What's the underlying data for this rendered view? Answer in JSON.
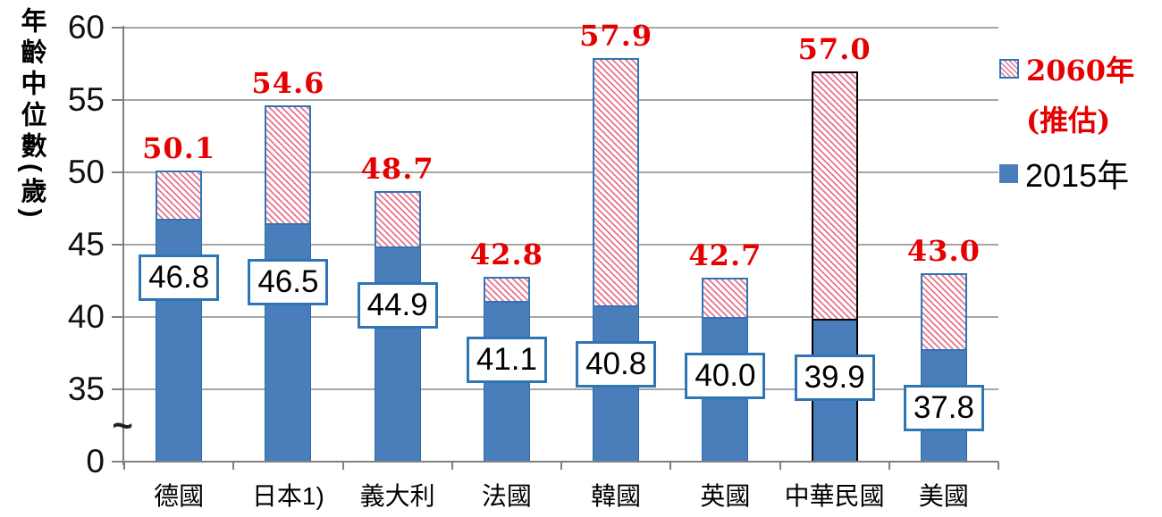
{
  "chart_data": {
    "type": "bar",
    "stacked": true,
    "title": "",
    "ylabel": "年齡中位數(歲)",
    "categories": [
      "德國",
      "日本1)",
      "義大利",
      "法國",
      "韓國",
      "英國",
      "中華民國",
      "美國"
    ],
    "series": [
      {
        "name": "2015年",
        "values": [
          46.8,
          46.5,
          44.9,
          41.1,
          40.8,
          40.0,
          39.9,
          37.8
        ],
        "labels": [
          "46.8",
          "46.5",
          "44.9",
          "41.1",
          "40.8",
          "40.0",
          "39.9",
          "37.8"
        ],
        "style": "solid",
        "color": "#4a7ebb"
      },
      {
        "name": "2060年(推估)",
        "values": [
          50.1,
          54.6,
          48.7,
          42.8,
          57.9,
          42.7,
          57.0,
          43.0
        ],
        "labels": [
          "50.1",
          "54.6",
          "48.7",
          "42.8",
          "57.9",
          "42.7",
          "57.0",
          "43.0"
        ],
        "style": "hatched",
        "color": "#e8738c"
      }
    ],
    "yticks": [
      {
        "label": "60",
        "value": 60
      },
      {
        "label": "55",
        "value": 55
      },
      {
        "label": "50",
        "value": 50
      },
      {
        "label": "45",
        "value": 45
      },
      {
        "label": "40",
        "value": 40
      },
      {
        "label": "35",
        "value": 35
      },
      {
        "label": "0",
        "value": 0
      }
    ],
    "gridlines": [
      60,
      55,
      50,
      45,
      40,
      35
    ],
    "axis_break_symbol": "~",
    "ylim_segments": [
      [
        0,
        0
      ],
      [
        35,
        60
      ]
    ],
    "highlighted_category": "中華民國",
    "legend": {
      "position": "right",
      "items": [
        {
          "label": "2060年",
          "sublabel": "(推估)",
          "swatch": "hatched",
          "text_color": "#e60000"
        },
        {
          "label": "2015年",
          "sublabel": "",
          "swatch": "solid",
          "text_color": "#000000"
        }
      ]
    },
    "colors": {
      "bar_2015": "#4a7ebb",
      "bar_border": "#2e75b6",
      "hatch_line": "#e8738c",
      "label_2060_text": "#e60000",
      "gridline": "#a6a6a6",
      "axis": "#808080",
      "highlight_border": "#000000",
      "value_box_bg": "#ffffff"
    }
  }
}
